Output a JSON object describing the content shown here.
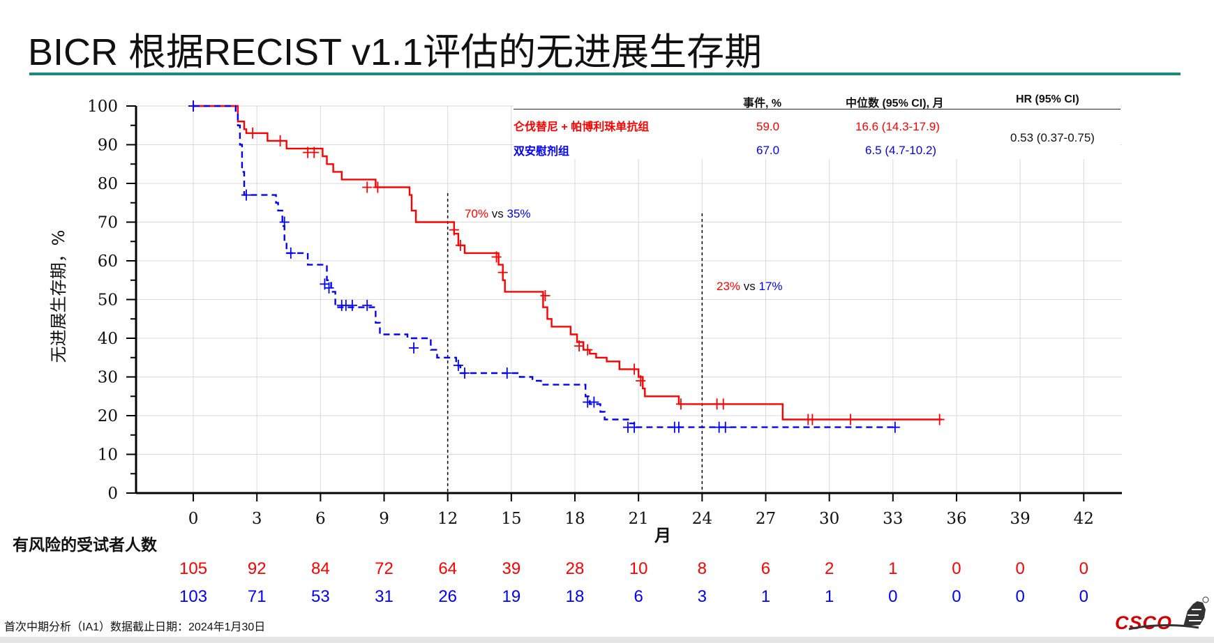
{
  "slide": {
    "title": "BICR 根据RECIST v1.1评估的无进展生存期",
    "footnote": "首次中期分析（IA1）数据截止日期：2024年1月30日",
    "logo_text": "CSCO"
  },
  "legend": {
    "headers": {
      "events": "事件, %",
      "median": "中位数 (95% CI), 月",
      "hr": "HR (95% CI)"
    },
    "rows": [
      {
        "name": "仑伐替尼 + 帕博利珠单抗组",
        "events": "59.0",
        "median": "16.6 (14.3-17.9)",
        "color": "#ff0000"
      },
      {
        "name": "双安慰剂组",
        "events": "67.0",
        "median": "6.5 (4.7-10.2)",
        "color": "#0000ff"
      }
    ],
    "hr_value": "0.53 (0.37-0.75)"
  },
  "annotations": [
    {
      "at_month": 12,
      "red": "70%",
      "vs": "vs",
      "blue": "35%"
    },
    {
      "at_month": 24,
      "red": "23%",
      "vs": "vs",
      "blue": "17%"
    }
  ],
  "risk_table": {
    "title": "有风险的受试者人数",
    "rows": [
      {
        "group": "仑伐替尼 + 帕博利珠单抗组",
        "color": "#ff0000",
        "values": [
          "105",
          "92",
          "84",
          "72",
          "64",
          "39",
          "28",
          "10",
          "8",
          "6",
          "2",
          "1",
          "0",
          "0",
          "0"
        ]
      },
      {
        "group": "双安慰剂组",
        "color": "#0000ff",
        "values": [
          "103",
          "71",
          "53",
          "31",
          "26",
          "19",
          "18",
          "6",
          "3",
          "1",
          "1",
          "0",
          "0",
          "0",
          "0"
        ]
      }
    ]
  },
  "chart_data": {
    "type": "line",
    "title": "",
    "xlabel": "月",
    "ylabel": "无进展生存期，%",
    "xlim": [
      -2.7,
      43.8
    ],
    "ylim": [
      0,
      100
    ],
    "xticks": [
      0,
      3,
      6,
      9,
      12,
      15,
      18,
      21,
      24,
      27,
      30,
      33,
      36,
      39,
      42
    ],
    "yticks": [
      0,
      10,
      20,
      30,
      40,
      50,
      60,
      70,
      80,
      90,
      100
    ],
    "grid": true,
    "reference_lines_x": [
      12,
      24
    ],
    "series": [
      {
        "name": "仑伐替尼 + 帕博利珠单抗组",
        "color": "#ff0000",
        "style": "solid",
        "steps": [
          [
            0,
            100
          ],
          [
            2,
            100
          ],
          [
            2.1,
            96
          ],
          [
            2.4,
            94
          ],
          [
            2.5,
            93
          ],
          [
            3.4,
            93
          ],
          [
            3.5,
            91
          ],
          [
            4.3,
            91
          ],
          [
            4.4,
            89
          ],
          [
            5.9,
            89
          ],
          [
            6.1,
            87
          ],
          [
            6.3,
            85
          ],
          [
            6.6,
            83
          ],
          [
            7,
            81
          ],
          [
            8.3,
            81
          ],
          [
            8.6,
            79
          ],
          [
            10,
            79
          ],
          [
            10.2,
            77
          ],
          [
            10.3,
            73
          ],
          [
            10.5,
            70
          ],
          [
            12,
            70
          ],
          [
            12.3,
            67
          ],
          [
            12.5,
            64
          ],
          [
            12.8,
            62
          ],
          [
            14.2,
            62
          ],
          [
            14.4,
            59
          ],
          [
            14.6,
            55
          ],
          [
            14.7,
            52
          ],
          [
            16.4,
            52
          ],
          [
            16.5,
            48
          ],
          [
            16.7,
            45
          ],
          [
            16.9,
            43
          ],
          [
            17.6,
            43
          ],
          [
            17.8,
            41
          ],
          [
            18.1,
            39
          ],
          [
            18.4,
            37
          ],
          [
            18.7,
            36
          ],
          [
            19,
            35
          ],
          [
            19.5,
            34
          ],
          [
            20.1,
            32
          ],
          [
            20.9,
            32
          ],
          [
            21,
            30
          ],
          [
            21.2,
            27
          ],
          [
            21.3,
            25
          ],
          [
            22.8,
            25
          ],
          [
            22.9,
            23
          ],
          [
            27.7,
            23
          ],
          [
            27.8,
            19
          ],
          [
            35.3,
            19
          ]
        ],
        "censors": [
          [
            0,
            100
          ],
          [
            2.8,
            93
          ],
          [
            4.1,
            91
          ],
          [
            5.4,
            88
          ],
          [
            5.7,
            88
          ],
          [
            8.2,
            79
          ],
          [
            8.7,
            79
          ],
          [
            12.3,
            68
          ],
          [
            12.6,
            64
          ],
          [
            14.3,
            61
          ],
          [
            14.6,
            57
          ],
          [
            16.6,
            51
          ],
          [
            18.2,
            38
          ],
          [
            18.6,
            37
          ],
          [
            20.8,
            32
          ],
          [
            21.1,
            29
          ],
          [
            23,
            23
          ],
          [
            24.7,
            23
          ],
          [
            25,
            23
          ],
          [
            29,
            19
          ],
          [
            29.2,
            19
          ],
          [
            31,
            19
          ],
          [
            35.2,
            19
          ]
        ]
      },
      {
        "name": "双安慰剂组",
        "color": "#0000ff",
        "style": "dashed",
        "steps": [
          [
            0,
            100
          ],
          [
            1.8,
            100
          ],
          [
            2,
            98
          ],
          [
            2.1,
            95
          ],
          [
            2.2,
            90
          ],
          [
            2.3,
            83
          ],
          [
            2.4,
            77
          ],
          [
            3.8,
            77
          ],
          [
            3.9,
            75
          ],
          [
            4,
            73
          ],
          [
            4.2,
            69
          ],
          [
            4.3,
            65
          ],
          [
            4.4,
            62
          ],
          [
            5.3,
            62
          ],
          [
            5.4,
            59
          ],
          [
            6.1,
            59
          ],
          [
            6.3,
            55
          ],
          [
            6.5,
            52
          ],
          [
            6.7,
            48
          ],
          [
            8.4,
            48
          ],
          [
            8.6,
            44
          ],
          [
            8.8,
            41
          ],
          [
            9.9,
            41
          ],
          [
            10.1,
            40
          ],
          [
            11,
            40
          ],
          [
            11.2,
            37
          ],
          [
            11.5,
            35
          ],
          [
            12.3,
            35
          ],
          [
            12.4,
            33
          ],
          [
            12.6,
            31
          ],
          [
            15,
            31
          ],
          [
            15.4,
            30
          ],
          [
            16,
            29
          ],
          [
            16.4,
            28
          ],
          [
            18.3,
            28
          ],
          [
            18.5,
            25
          ],
          [
            18.7,
            23
          ],
          [
            19.2,
            21
          ],
          [
            19.4,
            19
          ],
          [
            20.6,
            18
          ],
          [
            20.8,
            17
          ],
          [
            33.1,
            17
          ]
        ],
        "censors": [
          [
            0,
            100
          ],
          [
            2.5,
            77
          ],
          [
            4.3,
            70
          ],
          [
            4.6,
            62
          ],
          [
            6.2,
            54
          ],
          [
            6.4,
            53
          ],
          [
            7,
            48.5
          ],
          [
            7.2,
            48.5
          ],
          [
            7.5,
            48.5
          ],
          [
            8.2,
            48.5
          ],
          [
            10.4,
            37.5
          ],
          [
            12.5,
            33
          ],
          [
            12.8,
            31
          ],
          [
            14.8,
            31
          ],
          [
            18.6,
            23.5
          ],
          [
            18.9,
            23.5
          ],
          [
            20.5,
            17
          ],
          [
            20.8,
            17
          ],
          [
            22.7,
            17
          ],
          [
            22.9,
            17
          ],
          [
            24.8,
            17
          ],
          [
            25.1,
            17
          ],
          [
            33.1,
            17
          ]
        ]
      }
    ]
  }
}
